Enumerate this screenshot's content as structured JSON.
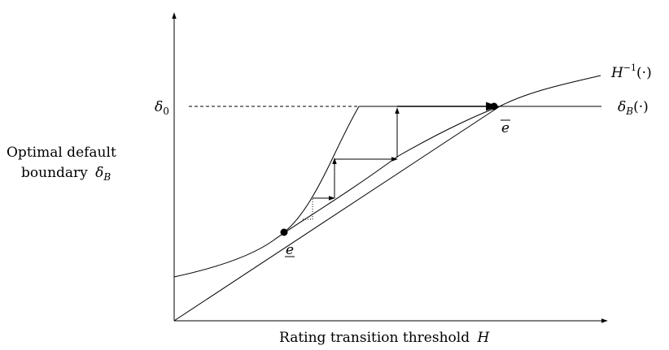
{
  "figure": {
    "y_axis_label_line1": "Optimal default",
    "y_axis_label_line2": "boundary",
    "y_axis_label_symbol": "δ",
    "y_axis_label_symbol_sub": "B",
    "x_axis_label": "Rating transition threshold",
    "x_axis_label_symbol": "H",
    "delta0_symbol": "δ",
    "delta0_sub": "0",
    "curve_label_base": "H",
    "curve_label_sup": "−1",
    "curve_label_arg": "(·)",
    "delta_b_symbol": "δ",
    "delta_b_sub": "B",
    "delta_b_arg": "(·)",
    "lower_fixed_point_label": "e",
    "upper_fixed_point_label": "e"
  }
}
